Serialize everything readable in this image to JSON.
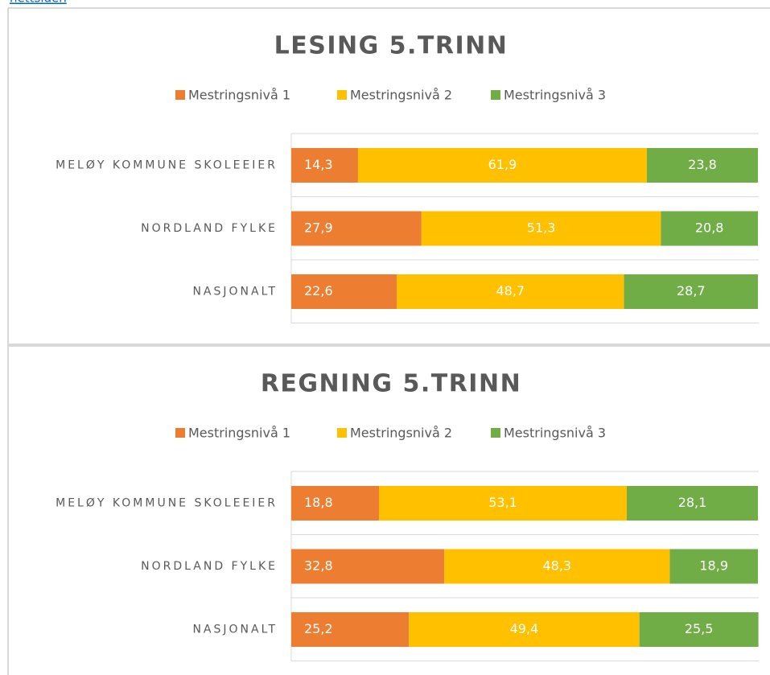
{
  "link": "nettsiden",
  "chart_data": [
    {
      "type": "stacked_bar_horizontal",
      "title": "LESING 5.TRINN",
      "categories": [
        "MELØY KOMMUNE SKOLEEIER",
        "NORDLAND FYLKE",
        "NASJONALT"
      ],
      "xlim": [
        0,
        100
      ],
      "legend": "top",
      "series": [
        {
          "name": "Mestringsnivå 1",
          "color": "#ed7d31",
          "values": [
            14.3,
            27.9,
            22.6
          ],
          "value_labels": [
            "14,3",
            "27,9",
            "22,6"
          ]
        },
        {
          "name": "Mestringsnivå 2",
          "color": "#ffc000",
          "values": [
            61.9,
            51.3,
            48.7
          ],
          "value_labels": [
            "61,9",
            "51,3",
            "48,7"
          ]
        },
        {
          "name": "Mestringsnivå 3",
          "color": "#70ad47",
          "values": [
            23.8,
            20.8,
            28.7
          ],
          "value_labels": [
            "23,8",
            "20,8",
            "28,7"
          ]
        }
      ]
    },
    {
      "type": "stacked_bar_horizontal",
      "title": "REGNING 5.TRINN",
      "categories": [
        "MELØY KOMMUNE SKOLEEIER",
        "NORDLAND FYLKE",
        "NASJONALT"
      ],
      "xlim": [
        0,
        100
      ],
      "legend": "top",
      "series": [
        {
          "name": "Mestringsnivå 1",
          "color": "#ed7d31",
          "values": [
            18.8,
            32.8,
            25.2
          ],
          "value_labels": [
            "18,8",
            "32,8",
            "25,2"
          ]
        },
        {
          "name": "Mestringsnivå 2",
          "color": "#ffc000",
          "values": [
            53.1,
            48.3,
            49.4
          ],
          "value_labels": [
            "53,1",
            "48,3",
            "49,4"
          ]
        },
        {
          "name": "Mestringsnivå 3",
          "color": "#70ad47",
          "values": [
            28.1,
            18.9,
            25.5
          ],
          "value_labels": [
            "28,1",
            "18,9",
            "25,5"
          ]
        }
      ]
    }
  ]
}
